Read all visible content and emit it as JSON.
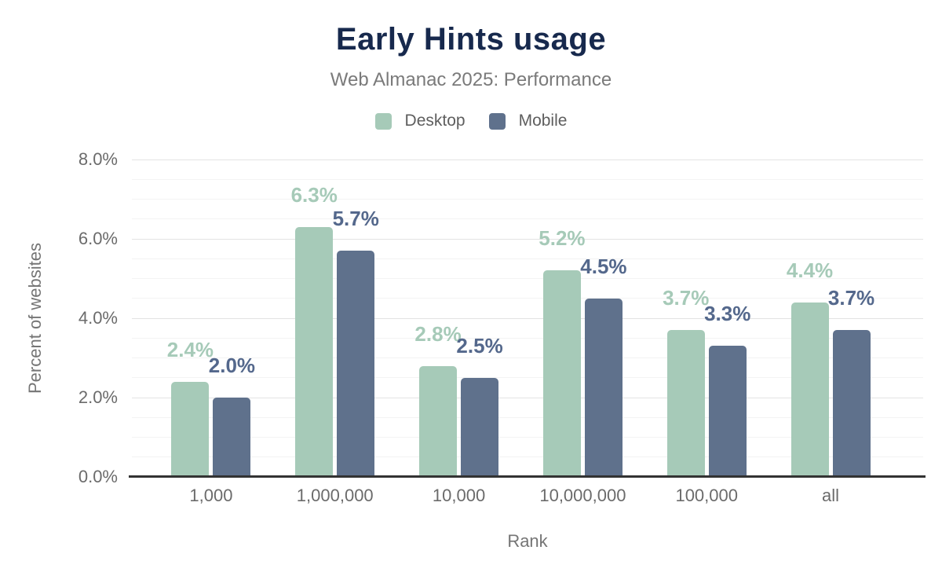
{
  "chart_data": {
    "type": "bar",
    "title": "Early Hints usage",
    "subtitle": "Web Almanac 2025: Performance",
    "xlabel": "Rank",
    "ylabel": "Percent of websites",
    "categories": [
      "1,000",
      "1,000,000",
      "10,000",
      "10,000,000",
      "100,000",
      "all"
    ],
    "series": [
      {
        "name": "Desktop",
        "color": "#a6cab8",
        "label_color": "#a6cab8",
        "values": [
          2.4,
          6.3,
          2.8,
          5.2,
          3.7,
          4.4
        ],
        "labels": [
          "2.4%",
          "6.3%",
          "2.8%",
          "5.2%",
          "3.7%",
          "4.4%"
        ]
      },
      {
        "name": "Mobile",
        "color": "#5f718c",
        "label_color": "#54688c",
        "values": [
          2.0,
          5.7,
          2.5,
          4.5,
          3.3,
          3.7
        ],
        "labels": [
          "2.0%",
          "5.7%",
          "2.5%",
          "4.5%",
          "3.3%",
          "3.7%"
        ]
      }
    ],
    "ylim": [
      0,
      8
    ],
    "y_ticks": [
      {
        "value": 8,
        "label": "8.0%"
      },
      {
        "value": 6,
        "label": "6.0%"
      },
      {
        "value": 4,
        "label": "4.0%"
      },
      {
        "value": 2,
        "label": "2.0%"
      },
      {
        "value": 0,
        "label": "0.0%"
      }
    ],
    "grid": {
      "minor_step": 0.5,
      "major_step": 2,
      "orientation": "horizontal"
    },
    "legend_position": "top",
    "colors": {
      "title": "#17294d",
      "subtitle": "#7a7a7a",
      "axis_text": "#6b6b6b",
      "axis_title": "#757575",
      "baseline": "#333333",
      "gridline_minor": "#f3f3f3",
      "gridline_major": "#e3e3e3"
    }
  }
}
